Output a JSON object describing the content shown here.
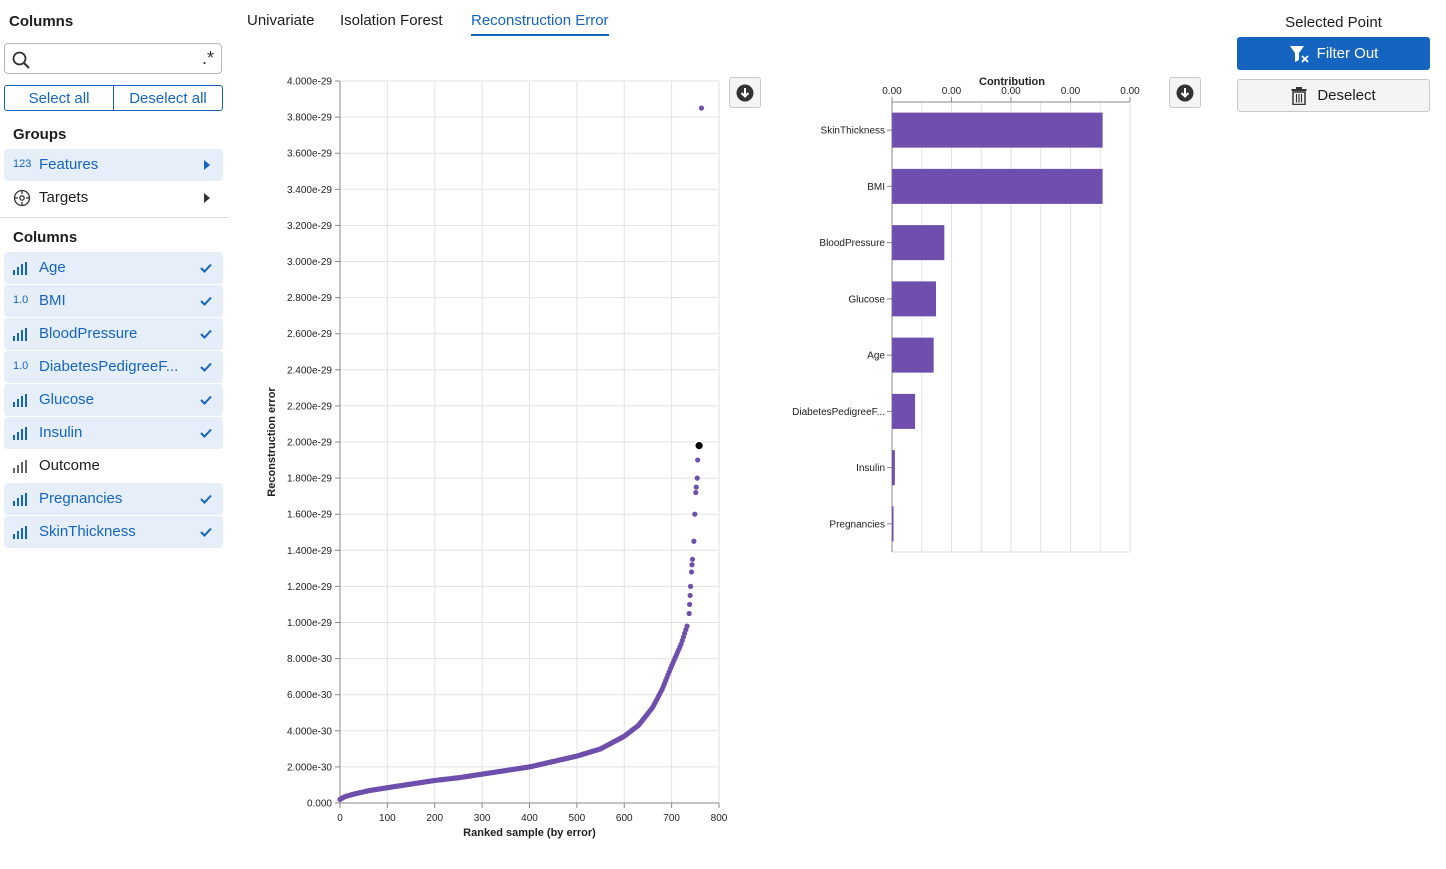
{
  "sidebar": {
    "title": "Columns",
    "search": {
      "placeholder": "",
      "value": "",
      "regex_icon": ".*"
    },
    "select_all": "Select all",
    "deselect_all": "Deselect all",
    "groups_heading": "Groups",
    "groups": [
      {
        "badge": "123",
        "label": "Features",
        "highlighted": true
      },
      {
        "icon": "target-icon",
        "label": "Targets",
        "highlighted": false
      }
    ],
    "columns_heading": "Columns",
    "columns": [
      {
        "icon": "bar-chart-icon",
        "label": "Age",
        "checked": true
      },
      {
        "badge": "1.0",
        "label": "BMI",
        "checked": true
      },
      {
        "icon": "bar-chart-icon",
        "label": "BloodPressure",
        "checked": true
      },
      {
        "badge": "1.0",
        "label": "DiabetesPedigreeF...",
        "checked": true
      },
      {
        "icon": "bar-chart-icon",
        "label": "Glucose",
        "checked": true
      },
      {
        "icon": "bar-chart-icon",
        "label": "Insulin",
        "checked": true
      },
      {
        "icon": "bar-chart-icon",
        "label": "Outcome",
        "checked": false
      },
      {
        "icon": "bar-chart-icon",
        "label": "Pregnancies",
        "checked": true
      },
      {
        "icon": "bar-chart-icon",
        "label": "SkinThickness",
        "checked": true
      }
    ]
  },
  "tabs": [
    {
      "label": "Univariate",
      "active": false
    },
    {
      "label": "Isolation Forest",
      "active": false
    },
    {
      "label": "Reconstruction Error",
      "active": true
    }
  ],
  "selected_point": {
    "title": "Selected Point",
    "filter_out": "Filter Out",
    "deselect": "Deselect"
  },
  "colors": {
    "accent": "#1565c0",
    "mark": "#6f4fad",
    "selected": "#000000"
  },
  "chart_data": [
    {
      "type": "scatter",
      "title": "",
      "xlabel": "Ranked sample (by error)",
      "ylabel": "Reconstruction error",
      "xlim": [
        0,
        800
      ],
      "ylim": [
        0,
        4e-29
      ],
      "x_ticks": [
        "0",
        "100",
        "200",
        "300",
        "400",
        "500",
        "600",
        "700",
        "800"
      ],
      "y_ticks": [
        "0.000",
        "2.000e-30",
        "4.000e-30",
        "6.000e-30",
        "8.000e-30",
        "1.000e-29",
        "1.200e-29",
        "1.400e-29",
        "1.600e-29",
        "1.800e-29",
        "2.000e-29",
        "2.200e-29",
        "2.400e-29",
        "2.600e-29",
        "2.800e-29",
        "3.000e-29",
        "3.200e-29",
        "3.400e-29",
        "3.600e-29",
        "3.800e-29",
        "4.000e-29"
      ],
      "grid": true,
      "curve": [
        [
          0,
          2e-31
        ],
        [
          10,
          3.5e-31
        ],
        [
          30,
          5e-31
        ],
        [
          60,
          6.8e-31
        ],
        [
          100,
          8.5e-31
        ],
        [
          150,
          1.05e-30
        ],
        [
          200,
          1.25e-30
        ],
        [
          250,
          1.4e-30
        ],
        [
          300,
          1.6e-30
        ],
        [
          350,
          1.8e-30
        ],
        [
          400,
          2e-30
        ],
        [
          450,
          2.3e-30
        ],
        [
          500,
          2.6e-30
        ],
        [
          550,
          3e-30
        ],
        [
          600,
          3.7e-30
        ],
        [
          630,
          4.3e-30
        ],
        [
          660,
          5.3e-30
        ],
        [
          680,
          6.3e-30
        ],
        [
          700,
          7.6e-30
        ],
        [
          720,
          8.8e-30
        ],
        [
          735,
          1e-29
        ]
      ],
      "outliers": [
        [
          737,
          1.05e-29
        ],
        [
          738,
          1.1e-29
        ],
        [
          739,
          1.15e-29
        ],
        [
          740,
          1.2e-29
        ],
        [
          742,
          1.28e-29
        ],
        [
          743,
          1.32e-29
        ],
        [
          744,
          1.35e-29
        ],
        [
          747,
          1.45e-29
        ],
        [
          749,
          1.6e-29
        ],
        [
          751,
          1.72e-29
        ],
        [
          752,
          1.75e-29
        ],
        [
          754,
          1.8e-29
        ],
        [
          755,
          1.9e-29
        ],
        [
          763,
          3.85e-29
        ]
      ],
      "selected": [
        758,
        1.98e-29
      ]
    },
    {
      "type": "bar",
      "orientation": "horizontal",
      "title": "Contribution",
      "x_ticks": [
        "0.00",
        "0.00",
        "0.00",
        "0.00",
        "0.00"
      ],
      "categories": [
        "SkinThickness",
        "BMI",
        "BloodPressure",
        "Glucose",
        "Age",
        "DiabetesPedigreeF...",
        "Insulin",
        "Pregnancies"
      ],
      "values": [
        0.885,
        0.885,
        0.22,
        0.185,
        0.175,
        0.097,
        0.012,
        0.005
      ],
      "xlim": [
        0,
        1
      ]
    }
  ]
}
